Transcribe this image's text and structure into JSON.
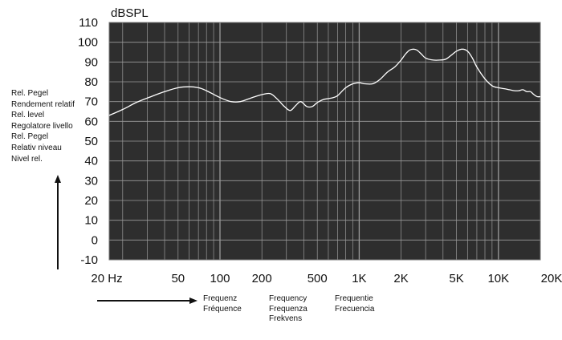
{
  "y_axis_labels": [
    "Rel. Pegel",
    "Rendement relatif",
    "Rel. level",
    "Regolatore livello",
    "Rel. Pegel",
    "Relativ niveau",
    "Nivel rel."
  ],
  "x_axis_labels": {
    "group1": [
      "Frequenz",
      "Fréquence"
    ],
    "group2": [
      "Frequency",
      "Frequenza",
      "Frekvens"
    ],
    "group3": [
      "Frequentie",
      "Frecuencia"
    ]
  },
  "colors": {
    "plot_background": "#2e2e2e",
    "grid": "#9a9a9a",
    "curve": "#ffffff",
    "arrow": "#111111"
  },
  "chart_data": {
    "type": "line",
    "title": "",
    "unit_label": "dBSPL",
    "x_scale": "log",
    "xlim": [
      16,
      20000
    ],
    "ylim": [
      -10,
      110
    ],
    "yticks": [
      110,
      100,
      90,
      80,
      70,
      60,
      50,
      40,
      30,
      20,
      10,
      0,
      -10
    ],
    "xticks": [
      {
        "value": 20,
        "label": "20 Hz"
      },
      {
        "value": 50,
        "label": "50"
      },
      {
        "value": 100,
        "label": "100"
      },
      {
        "value": 200,
        "label": "200"
      },
      {
        "value": 500,
        "label": "500"
      },
      {
        "value": 1000,
        "label": "1K"
      },
      {
        "value": 2000,
        "label": "2K"
      },
      {
        "value": 5000,
        "label": "5K"
      },
      {
        "value": 10000,
        "label": "10K"
      },
      {
        "value": 20000,
        "label": "20K"
      }
    ],
    "grid": true,
    "series": [
      {
        "x": [
          16,
          20,
          25,
          32,
          40,
          50,
          60,
          70,
          80,
          100,
          120,
          140,
          170,
          200,
          230,
          260,
          290,
          320,
          350,
          380,
          420,
          460,
          500,
          550,
          600,
          650,
          700,
          800,
          900,
          1000,
          1100,
          1250,
          1400,
          1600,
          1800,
          2000,
          2150,
          2300,
          2450,
          2600,
          2800,
          3000,
          3400,
          3800,
          4200,
          4600,
          5000,
          5500,
          6000,
          6500,
          7000,
          8000,
          9000,
          10000,
          11000,
          12000,
          13000,
          14000,
          15000,
          16000,
          17000,
          18000,
          19000,
          20000
        ],
        "y": [
          63,
          66,
          69.5,
          72.5,
          75,
          77,
          77.5,
          77,
          75.5,
          72,
          70,
          70,
          72,
          73.5,
          74,
          71,
          67.5,
          65.5,
          68,
          70,
          67.5,
          67.5,
          69.5,
          71,
          71.5,
          72,
          73,
          77,
          79,
          79.5,
          79,
          79,
          81,
          85,
          87.5,
          91,
          94,
          96,
          96.5,
          96,
          94,
          92,
          91,
          91,
          91.5,
          93.5,
          95.5,
          96.5,
          95.5,
          92,
          87.5,
          81.5,
          78,
          77,
          76.5,
          76,
          75.5,
          75.5,
          76,
          75,
          75,
          73.5,
          72.5,
          72.5
        ]
      }
    ]
  }
}
